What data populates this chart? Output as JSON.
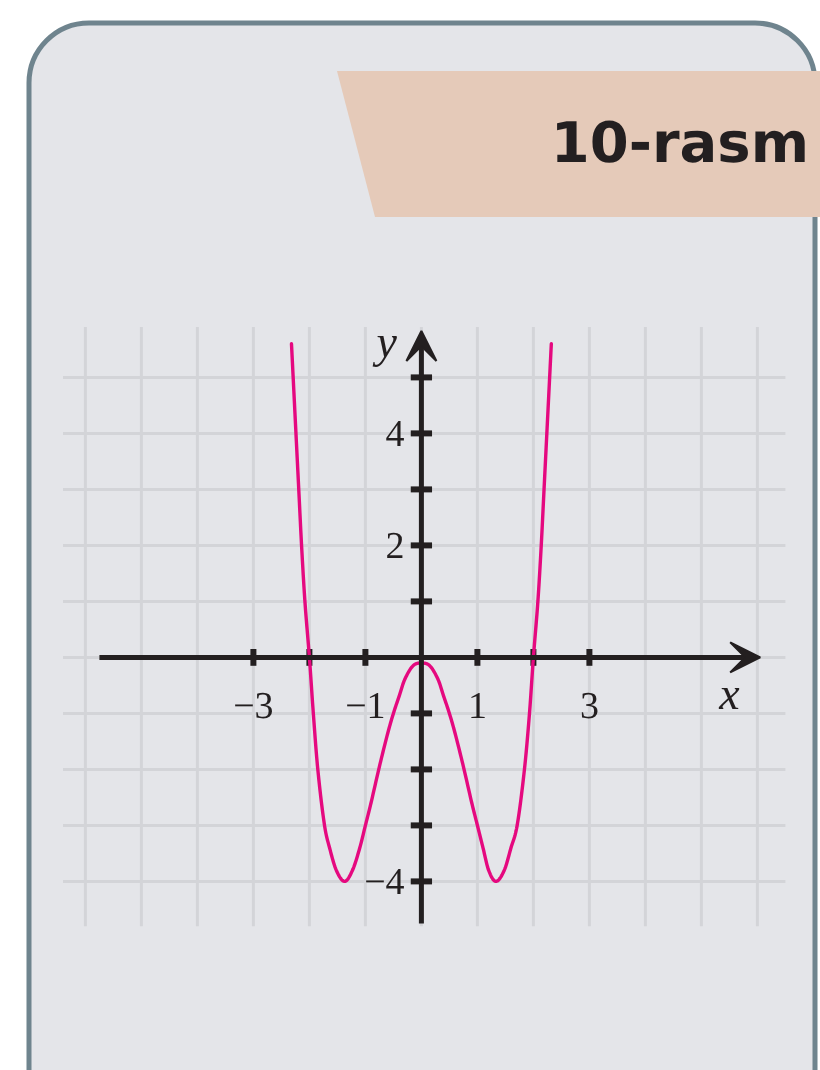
{
  "chart_data": {
    "type": "line",
    "title": "10-rasm",
    "xlabel": "x",
    "ylabel": "y",
    "x": [
      -2.32,
      -2.29,
      -2.24,
      -2.19,
      -2.14,
      -2.08,
      -2.0,
      -1.93,
      -1.85,
      -1.73,
      -1.64,
      -1.52,
      -1.37,
      -1.23,
      -1.1,
      -1.0,
      -0.9,
      -0.75,
      -0.6,
      -0.5,
      -0.4,
      -0.3,
      -0.15,
      0,
      0.15,
      0.3,
      0.4,
      0.5,
      0.6,
      0.75,
      0.9,
      1.0,
      1.1,
      1.2,
      1.33,
      1.48,
      1.6,
      1.71,
      1.84,
      1.93,
      2.0,
      2.08,
      2.14,
      2.19,
      2.24,
      2.29,
      2.32
    ],
    "values": [
      5.6,
      5.0,
      4,
      3,
      2,
      1,
      0,
      -1,
      -2,
      -3,
      -3.4,
      -3.8,
      -4,
      -3.8,
      -3.4,
      -3.0,
      -2.6,
      -1.95,
      -1.35,
      -1.0,
      -0.7,
      -0.4,
      -0.15,
      -0.1,
      -0.15,
      -0.4,
      -0.7,
      -1.0,
      -1.35,
      -1.95,
      -2.6,
      -3.0,
      -3.4,
      -3.8,
      -4,
      -3.8,
      -3.4,
      -3,
      -2,
      -1,
      0,
      1,
      2,
      3,
      4,
      5.0,
      5.6
    ],
    "color": "#e5097f",
    "line_style": "solid",
    "xlim": [
      -6.4,
      6.5
    ],
    "ylim": [
      -4.8,
      5.9
    ],
    "xticks": [
      {
        "value": -3,
        "label": "−3"
      },
      {
        "value": -2,
        "label": null
      },
      {
        "value": -1,
        "label": "−1"
      },
      1,
      {
        "value": 2,
        "label": null
      },
      3
    ],
    "yticks": [
      {
        "value": -4,
        "label": "−4"
      },
      {
        "value": -3,
        "label": null
      },
      {
        "value": -2,
        "label": null
      },
      {
        "value": -1,
        "label": null
      },
      {
        "value": 1,
        "label": null
      },
      2,
      {
        "value": 3,
        "label": null
      },
      4,
      {
        "value": 5,
        "label": null
      }
    ],
    "grid": true
  }
}
